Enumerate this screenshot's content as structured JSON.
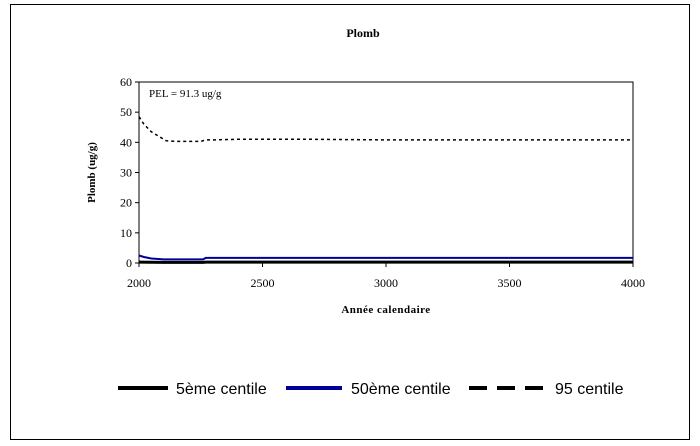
{
  "chart_data": {
    "type": "line",
    "title": "Plomb",
    "xlabel": "Année calendaire",
    "ylabel": "Plomb (ug/g)",
    "annotation": "PEL = 91.3 ug/g",
    "xlim": [
      2000,
      4000
    ],
    "ylim": [
      0,
      60
    ],
    "xticks": [
      2000,
      2500,
      3000,
      3500,
      4000
    ],
    "yticks": [
      0,
      10,
      20,
      30,
      40,
      50,
      60
    ],
    "grid": false,
    "legend_position": "bottom",
    "series": [
      {
        "name": "5ème centile",
        "style": "solid",
        "color": "#000000",
        "x": [
          2000,
          2100,
          2260,
          2270,
          4000
        ],
        "y": [
          0.3,
          0.2,
          0.2,
          0.3,
          0.3
        ]
      },
      {
        "name": "50ème centile",
        "style": "solid",
        "color": "#000099",
        "x": [
          2000,
          2020,
          2050,
          2100,
          2150,
          2200,
          2260,
          2270,
          2500,
          3000,
          3500,
          4000
        ],
        "y": [
          2.5,
          2.0,
          1.5,
          1.2,
          1.2,
          1.2,
          1.2,
          1.7,
          1.7,
          1.7,
          1.7,
          1.7
        ]
      },
      {
        "name": "95 centile",
        "style": "dashed",
        "color": "#000000",
        "x": [
          2000,
          2020,
          2050,
          2080,
          2110,
          2150,
          2200,
          2250,
          2270,
          2300,
          2400,
          2500,
          2700,
          3000,
          3500,
          4000
        ],
        "y": [
          48.5,
          46,
          43.5,
          42,
          40.5,
          40.3,
          40.3,
          40.3,
          40.8,
          40.8,
          41,
          41,
          41,
          40.8,
          40.8,
          40.8
        ]
      }
    ]
  }
}
